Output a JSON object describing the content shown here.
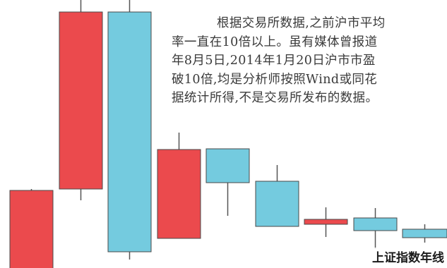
{
  "colors": {
    "up": "#eb4a4d",
    "down": "#74cbdf",
    "text": "#3a3a3a"
  },
  "article": {
    "lines": [
      "根据交易所数据,之前沪市平均",
      "率一直在10倍以上。虽有媒体曾报道",
      "年8月5日,2014年1月20日沪市市盈",
      "破10倍,均是分析师按照Wind或同花",
      "据统计所得,不是交易所发布的数据。"
    ]
  },
  "chart_data": {
    "type": "candlestick",
    "title": "上证指数年线",
    "candles": [
      {
        "direction": "up"
      },
      {
        "direction": "up"
      },
      {
        "direction": "down"
      },
      {
        "direction": "up"
      },
      {
        "direction": "down"
      },
      {
        "direction": "down"
      },
      {
        "direction": "up"
      },
      {
        "direction": "down"
      },
      {
        "direction": "down"
      }
    ]
  }
}
